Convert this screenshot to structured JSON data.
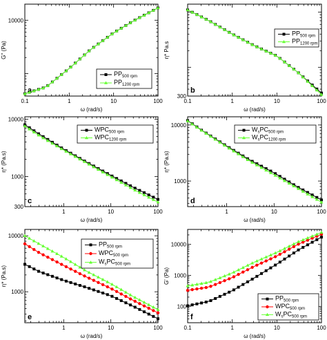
{
  "chart_data": [
    {
      "panel_label": "a",
      "type": "line",
      "xlabel": "ω (rad/s)",
      "ylabel": "G'' (Pa)",
      "xscale": "log",
      "yscale": "log",
      "xlim": [
        0.1,
        100
      ],
      "ylim": [
        380,
        20000
      ],
      "x_ticks": [
        {
          "v": 0.1,
          "t": "0.1"
        },
        {
          "v": 1,
          "t": "1"
        },
        {
          "v": 10,
          "t": "10"
        },
        {
          "v": 100,
          "t": "100"
        }
      ],
      "y_ticks": [
        {
          "v": 10000,
          "t": "10000"
        }
      ],
      "legend_position": "bottom-right",
      "series": [
        {
          "name": "PP",
          "sub": "500 rpm",
          "color": "#000000",
          "marker": "square",
          "curve": [
            [
              0.1,
              420
            ],
            [
              0.3,
              560
            ],
            [
              1,
              1250
            ],
            [
              3,
              2800
            ],
            [
              10,
              5800
            ],
            [
              30,
              10000
            ],
            [
              100,
              17000
            ]
          ]
        },
        {
          "name": "PP",
          "sub": "1200 rpm",
          "color": "#66ff33",
          "marker": "triangle",
          "curve": [
            [
              0.1,
              420
            ],
            [
              0.3,
              560
            ],
            [
              1,
              1250
            ],
            [
              3,
              2800
            ],
            [
              10,
              5800
            ],
            [
              30,
              10000
            ],
            [
              100,
              17000
            ]
          ]
        }
      ]
    },
    {
      "panel_label": "b",
      "type": "line",
      "xlabel": "ω (rad/s)",
      "ylabel": "η* Pa.s",
      "xscale": "log",
      "yscale": "log",
      "xlim": [
        0.1,
        100
      ],
      "ylim": [
        300,
        14000
      ],
      "x_ticks": [
        {
          "v": 0.1,
          "t": "0.1"
        },
        {
          "v": 1,
          "t": "1"
        },
        {
          "v": 10,
          "t": "10"
        },
        {
          "v": 100,
          "t": "100"
        }
      ],
      "y_ticks": [
        {
          "v": 300,
          "t": "300"
        }
      ],
      "legend_position": "top-right",
      "series": [
        {
          "name": "PP",
          "sub": "500 rpm",
          "color": "#000000",
          "marker": "square",
          "curve": [
            [
              0.1,
              11000
            ],
            [
              0.3,
              7000
            ],
            [
              1,
              4000
            ],
            [
              3,
              2500
            ],
            [
              10,
              1600
            ],
            [
              30,
              800
            ],
            [
              100,
              340
            ]
          ]
        },
        {
          "name": "PP",
          "sub": "1200 rpm",
          "color": "#66ff33",
          "marker": "triangle",
          "curve": [
            [
              0.1,
              11000
            ],
            [
              0.3,
              7000
            ],
            [
              1,
              4000
            ],
            [
              3,
              2500
            ],
            [
              10,
              1600
            ],
            [
              30,
              800
            ],
            [
              100,
              320
            ]
          ]
        }
      ]
    },
    {
      "panel_label": "c",
      "type": "line",
      "xlabel": "ω (rad/s)",
      "ylabel": "η* (Pa.s)",
      "xscale": "log",
      "yscale": "log",
      "xlim": [
        0.15,
        100
      ],
      "ylim": [
        300,
        11000
      ],
      "x_ticks": [
        {
          "v": 1,
          "t": "1"
        },
        {
          "v": 10,
          "t": "10"
        },
        {
          "v": 100,
          "t": "100"
        }
      ],
      "y_ticks": [
        {
          "v": 10000,
          "t": "10000"
        },
        {
          "v": 1000,
          "t": "1000"
        },
        {
          "v": 300,
          "t": "300"
        }
      ],
      "legend_position": "top-right",
      "series": [
        {
          "name": "WPC",
          "sub": "500 rpm",
          "color": "#000000",
          "marker": "square",
          "curve": [
            [
              0.15,
              8000
            ],
            [
              0.3,
              5500
            ],
            [
              1,
              3000
            ],
            [
              3,
              1800
            ],
            [
              10,
              1050
            ],
            [
              30,
              650
            ],
            [
              100,
              400
            ]
          ]
        },
        {
          "name": "WPC",
          "sub": "1200 rpm",
          "color": "#66ff33",
          "marker": "triangle",
          "curve": [
            [
              0.15,
              7600
            ],
            [
              0.3,
              5200
            ],
            [
              1,
              2900
            ],
            [
              3,
              1750
            ],
            [
              10,
              1000
            ],
            [
              30,
              600
            ],
            [
              100,
              360
            ]
          ]
        }
      ]
    },
    {
      "panel_label": "d",
      "type": "line",
      "xlabel": "ω (rad/s)",
      "ylabel": "η* (Pa.s)",
      "xscale": "log",
      "yscale": "log",
      "xlim": [
        0.15,
        100
      ],
      "ylim": [
        350,
        14000
      ],
      "x_ticks": [
        {
          "v": 1,
          "t": "1"
        },
        {
          "v": 10,
          "t": "10"
        },
        {
          "v": 100,
          "t": "100"
        }
      ],
      "y_ticks": [
        {
          "v": 10000,
          "t": "10000"
        },
        {
          "v": 1000,
          "t": "1000"
        }
      ],
      "legend_position": "top-right",
      "series": [
        {
          "name": "W",
          "sub2": "s",
          "name2": "PC",
          "sub": "500 rpm",
          "color": "#000000",
          "marker": "square",
          "curve": [
            [
              0.15,
              12000
            ],
            [
              0.3,
              8000
            ],
            [
              1,
              4200
            ],
            [
              3,
              2400
            ],
            [
              10,
              1400
            ],
            [
              30,
              800
            ],
            [
              100,
              460
            ]
          ]
        },
        {
          "name": "W",
          "sub2": "s",
          "name2": "PC",
          "sub": "1200 rpm",
          "color": "#66ff33",
          "marker": "triangle",
          "curve": [
            [
              0.15,
              11800
            ],
            [
              0.3,
              7900
            ],
            [
              1,
              4100
            ],
            [
              3,
              2300
            ],
            [
              10,
              1300
            ],
            [
              30,
              760
            ],
            [
              100,
              420
            ]
          ]
        }
      ]
    },
    {
      "panel_label": "e",
      "type": "line",
      "xlabel": "ω (rad/s)",
      "ylabel": "η* (Pa.s)",
      "xscale": "log",
      "yscale": "log",
      "xlim": [
        0.15,
        100
      ],
      "ylim": [
        280,
        13000
      ],
      "x_ticks": [
        {
          "v": 1,
          "t": "1"
        },
        {
          "v": 10,
          "t": "10"
        },
        {
          "v": 100,
          "t": "100"
        }
      ],
      "y_ticks": [
        {
          "v": 10000,
          "t": "10000"
        },
        {
          "v": 1000,
          "t": "1000"
        }
      ],
      "legend_position": "top-right",
      "series": [
        {
          "name": "PP",
          "sub": "500 rpm",
          "color": "#000000",
          "marker": "square",
          "curve": [
            [
              0.15,
              3100
            ],
            [
              0.3,
              2300
            ],
            [
              1,
              1600
            ],
            [
              3,
              1200
            ],
            [
              10,
              850
            ],
            [
              30,
              550
            ],
            [
              100,
              330
            ]
          ]
        },
        {
          "name": "WPC",
          "sub": "500 rpm",
          "color": "#ff0000",
          "marker": "circle",
          "curve": [
            [
              0.15,
              7200
            ],
            [
              0.3,
              5000
            ],
            [
              1,
              2950
            ],
            [
              3,
              1850
            ],
            [
              10,
              1150
            ],
            [
              30,
              700
            ],
            [
              100,
              420
            ]
          ]
        },
        {
          "name": "W",
          "sub2": "s",
          "name2": "PC",
          "sub": "500 rpm",
          "color": "#66ff33",
          "marker": "triangle",
          "curve": [
            [
              0.15,
              10000
            ],
            [
              0.3,
              7200
            ],
            [
              1,
              4100
            ],
            [
              3,
              2350
            ],
            [
              10,
              1400
            ],
            [
              30,
              820
            ],
            [
              100,
              480
            ]
          ]
        }
      ]
    },
    {
      "panel_label": "f",
      "type": "line",
      "xlabel": "ω (rad/s)",
      "ylabel": "G' (Pa)",
      "xscale": "log",
      "yscale": "log",
      "xlim": [
        0.1,
        100
      ],
      "ylim": [
        30,
        30000
      ],
      "x_ticks": [
        {
          "v": 0.1,
          "t": "0.1"
        },
        {
          "v": 1,
          "t": "1"
        },
        {
          "v": 10,
          "t": "10"
        },
        {
          "v": 100,
          "t": "100"
        }
      ],
      "y_ticks": [
        {
          "v": 10000,
          "t": "10000"
        },
        {
          "v": 1000,
          "t": "1000"
        },
        {
          "v": 100,
          "t": "100"
        }
      ],
      "legend_position": "bottom-right",
      "series": [
        {
          "name": "PP",
          "sub": "500 rpm",
          "color": "#000000",
          "marker": "square",
          "curve": [
            [
              0.1,
              105
            ],
            [
              0.3,
              145
            ],
            [
              1,
              320
            ],
            [
              3,
              800
            ],
            [
              10,
              2300
            ],
            [
              30,
              6500
            ],
            [
              100,
              17000
            ]
          ]
        },
        {
          "name": "WPC",
          "sub": "500 rpm",
          "color": "#ff0000",
          "marker": "circle",
          "curve": [
            [
              0.1,
              330
            ],
            [
              0.3,
              420
            ],
            [
              1,
              850
            ],
            [
              3,
              1900
            ],
            [
              10,
              4200
            ],
            [
              30,
              10000
            ],
            [
              100,
              21000
            ]
          ]
        },
        {
          "name": "W",
          "sub2": "s",
          "name2": "PC",
          "sub": "500 rpm",
          "color": "#66ff33",
          "marker": "triangle",
          "curve": [
            [
              0.1,
              460
            ],
            [
              0.3,
              600
            ],
            [
              1,
              1200
            ],
            [
              3,
              2600
            ],
            [
              10,
              5500
            ],
            [
              30,
              12000
            ],
            [
              100,
              24000
            ]
          ]
        }
      ]
    }
  ]
}
